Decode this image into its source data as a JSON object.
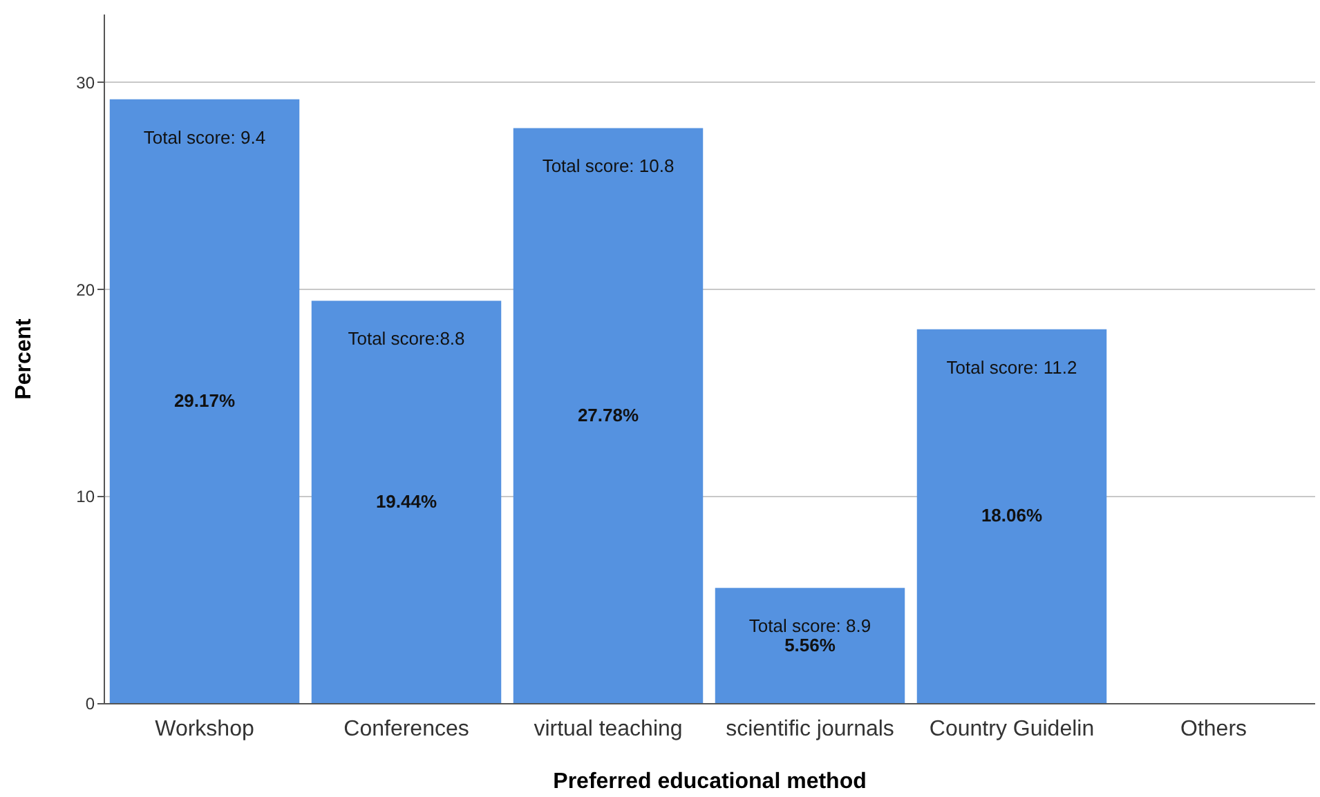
{
  "chart_data": {
    "type": "bar",
    "xlabel": "Preferred educational method",
    "ylabel": "Percent",
    "categories": [
      "Workshop",
      "Conferences",
      "virtual teaching",
      "scientific journals",
      "Country Guidelin",
      "Others"
    ],
    "values": [
      29.17,
      19.44,
      27.78,
      5.56,
      18.06,
      null
    ],
    "value_labels": [
      "29.17%",
      "19.44%",
      "27.78%",
      "5.56%",
      "18.06%",
      null
    ],
    "color": "#5592e0",
    "ylim": [
      0,
      33.3
    ],
    "yticks": [
      0,
      10,
      20,
      30
    ],
    "grid": "y",
    "annotations": [
      "Total score: 9.4",
      "Total score:8.8",
      "Total score: 10.8",
      "Total score: 8.9",
      "Total score: 11.2"
    ]
  }
}
